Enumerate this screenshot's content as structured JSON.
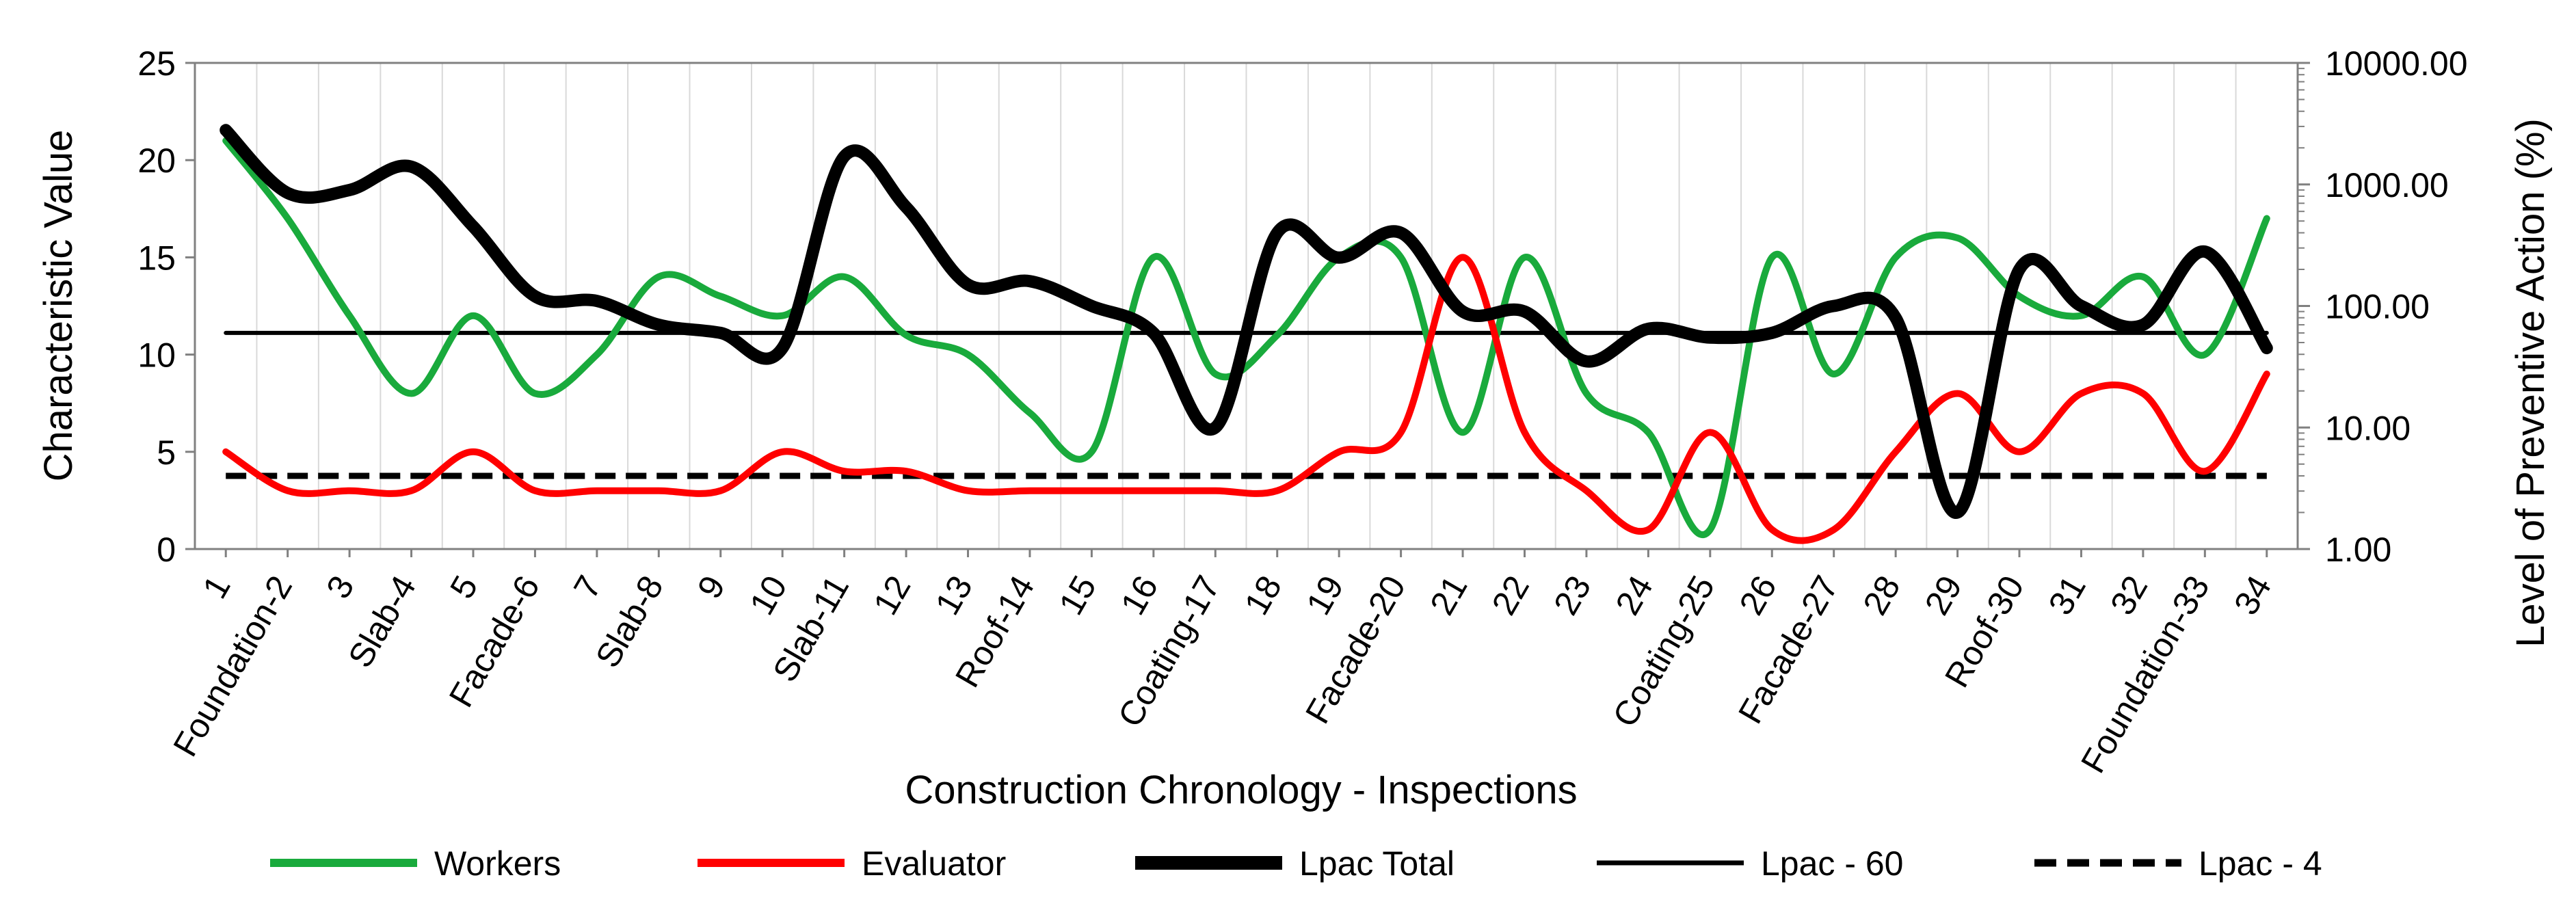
{
  "chart_data": {
    "type": "line",
    "xlabel": "Construction Chronology - Inspections",
    "ylabel_left": "Characteristic Value",
    "ylabel_right": "Level of Preventive Action (%)",
    "ylim_left": [
      0,
      25
    ],
    "left_ticks": [
      "0",
      "5",
      "10",
      "15",
      "20",
      "25"
    ],
    "ylim_right": [
      1,
      10000
    ],
    "right_scale": "log",
    "right_ticks": [
      "1.00",
      "10.00",
      "100.00",
      "1000.00",
      "10000.00"
    ],
    "grid": "vertical",
    "categories": [
      "1",
      "Foundation-2",
      "3",
      "Slab-4",
      "5",
      "Facade-6",
      "7",
      "Slab-8",
      "9",
      "10",
      "Slab-11",
      "12",
      "13",
      "Roof-14",
      "15",
      "16",
      "Coating-17",
      "18",
      "19",
      "Facade-20",
      "21",
      "22",
      "23",
      "24",
      "Coating-25",
      "26",
      "Facade-27",
      "28",
      "29",
      "Roof-30",
      "31",
      "32",
      "Foundation-33",
      "34"
    ],
    "series": [
      {
        "name": "Workers",
        "axis": "left",
        "color": "#19aa3c",
        "style": "solid",
        "values": [
          21,
          17,
          12,
          8,
          12,
          8,
          10,
          14,
          13,
          12,
          14,
          11,
          10,
          7,
          5,
          15,
          9,
          11,
          15,
          15,
          6,
          15,
          8,
          6,
          1,
          15,
          9,
          15,
          16,
          13,
          12,
          14,
          10,
          17
        ]
      },
      {
        "name": "Evaluator",
        "axis": "left",
        "color": "#ff0000",
        "style": "solid",
        "values": [
          5,
          3,
          3,
          3,
          5,
          3,
          3,
          3,
          3,
          5,
          4,
          4,
          3,
          3,
          3,
          3,
          3,
          3,
          5,
          6,
          15,
          6,
          3,
          1,
          6,
          1,
          1,
          5,
          8,
          5,
          8,
          8,
          4,
          9
        ]
      },
      {
        "name": "Lpac Total",
        "axis": "right",
        "color": "#000000",
        "style": "thick",
        "values": [
          2800,
          850,
          900,
          1400,
          450,
          120,
          110,
          70,
          60,
          45,
          1700,
          650,
          150,
          160,
          100,
          60,
          10,
          400,
          250,
          400,
          90,
          90,
          35,
          65,
          55,
          60,
          100,
          80,
          2,
          200,
          100,
          70,
          280,
          45
        ]
      },
      {
        "name": "Lpac - 60",
        "axis": "right",
        "color": "#000000",
        "style": "solid",
        "values": [
          60,
          60,
          60,
          60,
          60,
          60,
          60,
          60,
          60,
          60,
          60,
          60,
          60,
          60,
          60,
          60,
          60,
          60,
          60,
          60,
          60,
          60,
          60,
          60,
          60,
          60,
          60,
          60,
          60,
          60,
          60,
          60,
          60,
          60
        ]
      },
      {
        "name": "Lpac - 4",
        "axis": "right",
        "color": "#000000",
        "style": "dashed",
        "values": [
          4,
          4,
          4,
          4,
          4,
          4,
          4,
          4,
          4,
          4,
          4,
          4,
          4,
          4,
          4,
          4,
          4,
          4,
          4,
          4,
          4,
          4,
          4,
          4,
          4,
          4,
          4,
          4,
          4,
          4,
          4,
          4,
          4,
          4
        ]
      }
    ],
    "legend_position": "bottom"
  }
}
